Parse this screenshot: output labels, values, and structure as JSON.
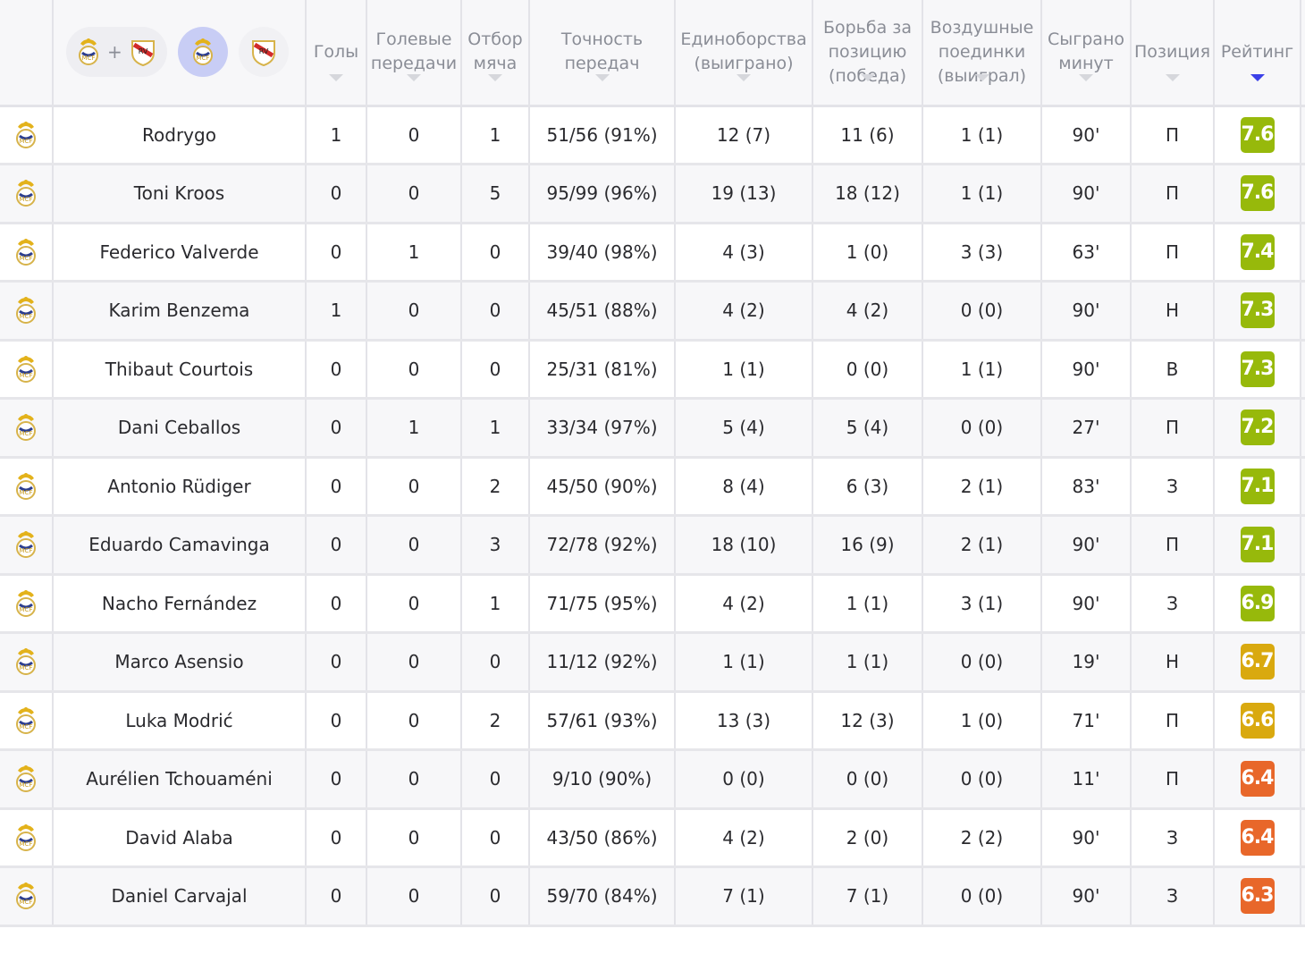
{
  "header": {
    "filters": {
      "plus": "+"
    },
    "columns": [
      {
        "key": "goals",
        "label": "Голы"
      },
      {
        "key": "assists",
        "label": "Голевые передачи"
      },
      {
        "key": "tackles",
        "label": "Отбор мяча"
      },
      {
        "key": "passes",
        "label": "Точность передач"
      },
      {
        "key": "duels",
        "label": "Единоборства (выиграно)"
      },
      {
        "key": "ground",
        "label": "Борьба за позицию (победа)"
      },
      {
        "key": "aerial",
        "label": "Воздушные поединки (выиграл)"
      },
      {
        "key": "minutes",
        "label": "Сыграно минут"
      },
      {
        "key": "position",
        "label": "Позиция"
      },
      {
        "key": "rating",
        "label": "Рейтинг"
      }
    ],
    "sorted_by": "rating"
  },
  "colors": {
    "rating_high": "#97b90b",
    "rating_mid": "#d9a90f",
    "rating_low": "#e8672a",
    "sort_active": "#3b40e8"
  },
  "players": [
    {
      "name": "Rodrygo",
      "goals": "1",
      "assists": "0",
      "tackles": "1",
      "passes": "51/56 (91%)",
      "duels": "12 (7)",
      "ground": "11 (6)",
      "aerial": "1 (1)",
      "minutes": "90'",
      "position": "П",
      "rating": "7.6"
    },
    {
      "name": "Toni Kroos",
      "goals": "0",
      "assists": "0",
      "tackles": "5",
      "passes": "95/99 (96%)",
      "duels": "19 (13)",
      "ground": "18 (12)",
      "aerial": "1 (1)",
      "minutes": "90'",
      "position": "П",
      "rating": "7.6"
    },
    {
      "name": "Federico Valverde",
      "goals": "0",
      "assists": "1",
      "tackles": "0",
      "passes": "39/40 (98%)",
      "duels": "4 (3)",
      "ground": "1 (0)",
      "aerial": "3 (3)",
      "minutes": "63'",
      "position": "П",
      "rating": "7.4"
    },
    {
      "name": "Karim Benzema",
      "goals": "1",
      "assists": "0",
      "tackles": "0",
      "passes": "45/51 (88%)",
      "duels": "4 (2)",
      "ground": "4 (2)",
      "aerial": "0 (0)",
      "minutes": "90'",
      "position": "Н",
      "rating": "7.3"
    },
    {
      "name": "Thibaut Courtois",
      "goals": "0",
      "assists": "0",
      "tackles": "0",
      "passes": "25/31 (81%)",
      "duels": "1 (1)",
      "ground": "0 (0)",
      "aerial": "1 (1)",
      "minutes": "90'",
      "position": "В",
      "rating": "7.3"
    },
    {
      "name": "Dani Ceballos",
      "goals": "0",
      "assists": "1",
      "tackles": "1",
      "passes": "33/34 (97%)",
      "duels": "5 (4)",
      "ground": "5 (4)",
      "aerial": "0 (0)",
      "minutes": "27'",
      "position": "П",
      "rating": "7.2"
    },
    {
      "name": "Antonio Rüdiger",
      "goals": "0",
      "assists": "0",
      "tackles": "2",
      "passes": "45/50 (90%)",
      "duels": "8 (4)",
      "ground": "6 (3)",
      "aerial": "2 (1)",
      "minutes": "83'",
      "position": "З",
      "rating": "7.1"
    },
    {
      "name": "Eduardo Camavinga",
      "goals": "0",
      "assists": "0",
      "tackles": "3",
      "passes": "72/78 (92%)",
      "duels": "18 (10)",
      "ground": "16 (9)",
      "aerial": "2 (1)",
      "minutes": "90'",
      "position": "П",
      "rating": "7.1"
    },
    {
      "name": "Nacho Fernández",
      "goals": "0",
      "assists": "0",
      "tackles": "1",
      "passes": "71/75 (95%)",
      "duels": "4 (2)",
      "ground": "1 (1)",
      "aerial": "3 (1)",
      "minutes": "90'",
      "position": "З",
      "rating": "6.9"
    },
    {
      "name": "Marco Asensio",
      "goals": "0",
      "assists": "0",
      "tackles": "0",
      "passes": "11/12 (92%)",
      "duels": "1 (1)",
      "ground": "1 (1)",
      "aerial": "0 (0)",
      "minutes": "19'",
      "position": "Н",
      "rating": "6.7"
    },
    {
      "name": "Luka Modrić",
      "goals": "0",
      "assists": "0",
      "tackles": "2",
      "passes": "57/61 (93%)",
      "duels": "13 (3)",
      "ground": "12 (3)",
      "aerial": "1 (0)",
      "minutes": "71'",
      "position": "П",
      "rating": "6.6"
    },
    {
      "name": "Aurélien Tchouaméni",
      "goals": "0",
      "assists": "0",
      "tackles": "0",
      "passes": "9/10 (90%)",
      "duels": "0 (0)",
      "ground": "0 (0)",
      "aerial": "0 (0)",
      "minutes": "11'",
      "position": "П",
      "rating": "6.4"
    },
    {
      "name": "David Alaba",
      "goals": "0",
      "assists": "0",
      "tackles": "0",
      "passes": "43/50 (86%)",
      "duels": "4 (2)",
      "ground": "2 (0)",
      "aerial": "2 (2)",
      "minutes": "90'",
      "position": "З",
      "rating": "6.4"
    },
    {
      "name": "Daniel Carvajal",
      "goals": "0",
      "assists": "0",
      "tackles": "0",
      "passes": "59/70 (84%)",
      "duels": "7 (1)",
      "ground": "7 (1)",
      "aerial": "0 (0)",
      "minutes": "90'",
      "position": "З",
      "rating": "6.3"
    }
  ]
}
